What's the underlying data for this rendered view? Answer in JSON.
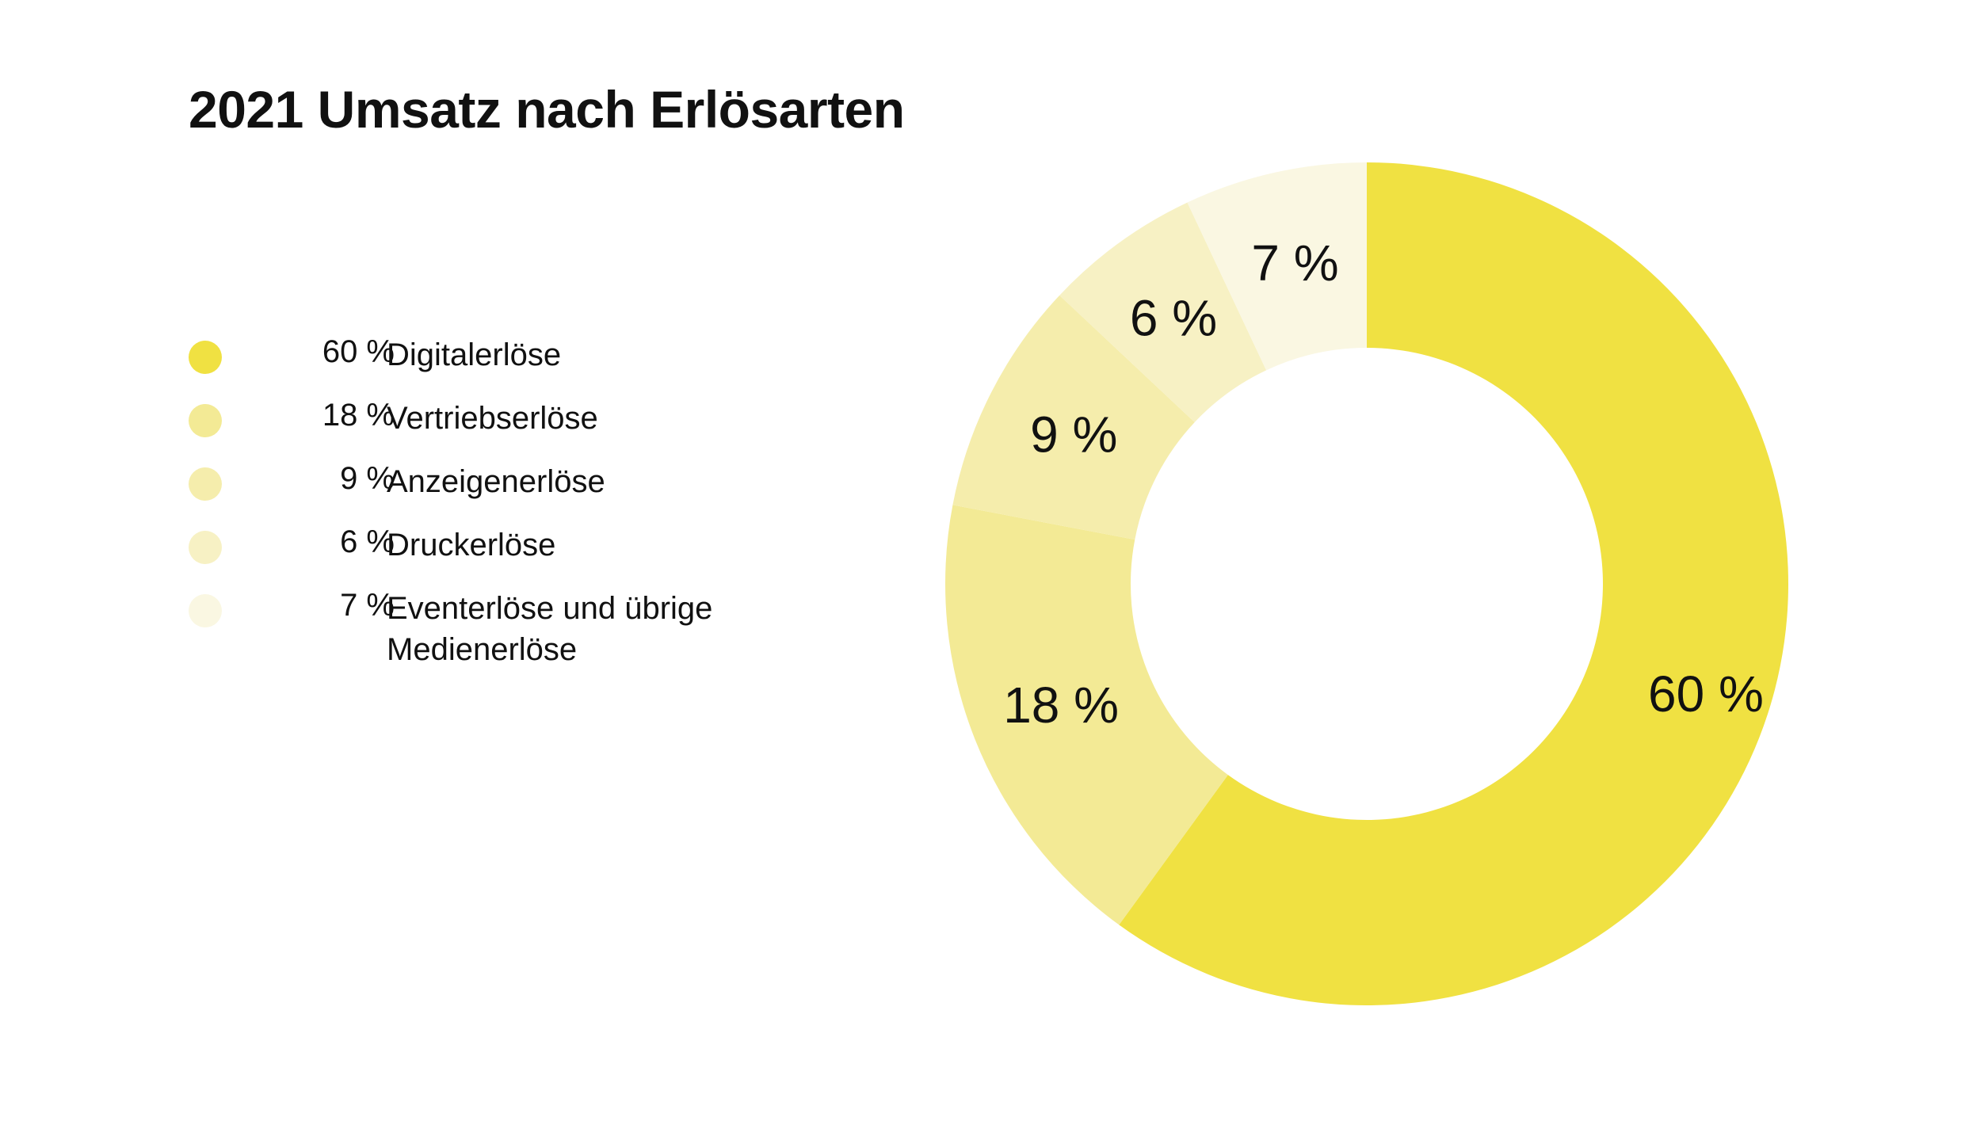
{
  "chart_data": {
    "type": "pie",
    "subtype": "donut",
    "title": "2021 Umsatz nach Erlösarten",
    "start_angle": "top, clockwise",
    "slices": [
      {
        "label": "Digitalerlöse",
        "value": 60,
        "display": "60 %",
        "color": "#F0E142"
      },
      {
        "label": "Vertriebserlöse",
        "value": 18,
        "display": "18 %",
        "color": "#F3EA95"
      },
      {
        "label": "Anzeigenerlöse",
        "value": 9,
        "display": "9 %",
        "color": "#F5EDAC"
      },
      {
        "label": "Druckerlöse",
        "value": 6,
        "display": "6 %",
        "color": "#F7F1C4"
      },
      {
        "label": "Eventerlöse und übrige Medienerlöse",
        "value": 7,
        "display": "7 %",
        "color": "#FAF7E2"
      }
    ]
  }
}
